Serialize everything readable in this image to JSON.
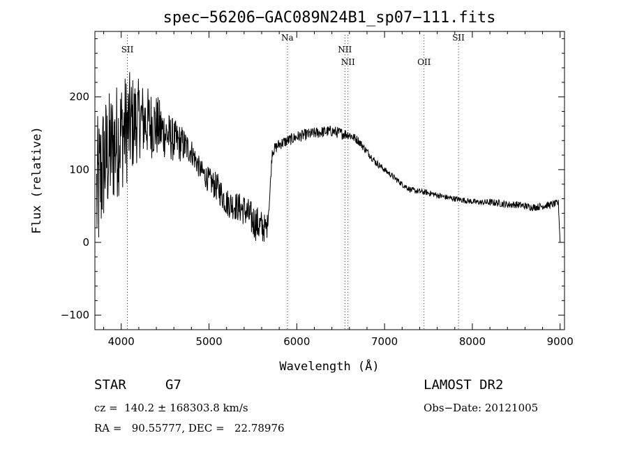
{
  "chart_data": {
    "type": "line",
    "title": "spec−56206−GAC089N24B1_sp07−111.fits",
    "xlabel": "Wavelength (Å)",
    "ylabel": "Flux (relative)",
    "xlim": [
      3700,
      9050
    ],
    "ylim": [
      -120,
      290
    ],
    "x_ticks": [
      4000,
      5000,
      6000,
      7000,
      8000,
      9000
    ],
    "y_ticks": [
      -100,
      0,
      100,
      200
    ],
    "grid": false,
    "line_color": "#000000",
    "lines": [
      {
        "label": "SII",
        "x": 4070
      },
      {
        "label": "Na",
        "x": 5893
      },
      {
        "label": "NII",
        "x": 6548
      },
      {
        "label": "NII",
        "x": 6584
      },
      {
        "label": "OII",
        "x": 7450
      },
      {
        "label": "SII",
        "x": 7842
      }
    ],
    "spectrum_anchors": {
      "x": [
        3720,
        3800,
        3900,
        4000,
        4100,
        4200,
        4300,
        4400,
        4500,
        4600,
        4700,
        4800,
        4900,
        5000,
        5100,
        5200,
        5300,
        5400,
        5500,
        5600,
        5660,
        5690,
        5720,
        5800,
        5900,
        6000,
        6100,
        6200,
        6300,
        6400,
        6500,
        6600,
        6700,
        6800,
        6900,
        7000,
        7100,
        7200,
        7300,
        7400,
        7500,
        7600,
        7700,
        7800,
        7900,
        8000,
        8100,
        8200,
        8300,
        8400,
        8500,
        8600,
        8700,
        8800,
        8900,
        8980,
        9000
      ],
      "y": [
        60,
        110,
        130,
        150,
        160,
        170,
        165,
        160,
        150,
        140,
        135,
        125,
        100,
        85,
        75,
        55,
        50,
        45,
        30,
        20,
        20,
        60,
        125,
        135,
        140,
        145,
        148,
        150,
        152,
        153,
        150,
        148,
        140,
        125,
        110,
        100,
        90,
        80,
        72,
        70,
        68,
        65,
        62,
        60,
        58,
        56,
        55,
        55,
        54,
        52,
        52,
        50,
        48,
        50,
        52,
        54,
        0
      ],
      "noise_amplitude": [
        110,
        90,
        85,
        80,
        75,
        55,
        50,
        45,
        35,
        30,
        25,
        18,
        15,
        18,
        20,
        20,
        20,
        22,
        25,
        25,
        15,
        8,
        8,
        8,
        8,
        8,
        8,
        8,
        8,
        8,
        8,
        7,
        6,
        5,
        5,
        4,
        4,
        4,
        4,
        4,
        4,
        4,
        4,
        4,
        4,
        4,
        4,
        5,
        5,
        5,
        5,
        5,
        5,
        5,
        5,
        5,
        0
      ]
    }
  },
  "info": {
    "object_type": "STAR",
    "subclass": "G7",
    "survey": "LAMOST DR2",
    "redshift": "cz =  140.2 ± 168303.8 km/s",
    "obs_date": "Obs−Date: 20121005",
    "coords": "RA =   90.55777, DEC =   22.78976"
  }
}
